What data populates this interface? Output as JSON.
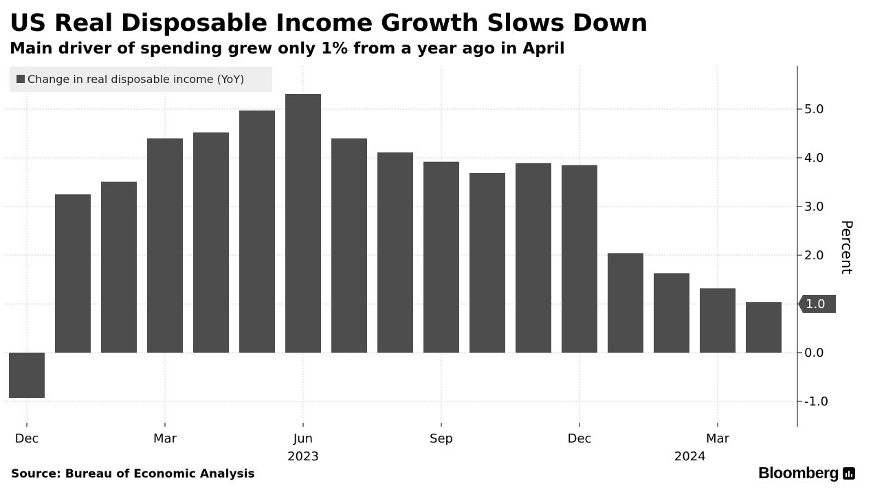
{
  "header": {
    "title": "US Real Disposable Income Growth Slows Down",
    "subtitle": "Main driver of spending grew only 1% from a year ago in April"
  },
  "footer": {
    "source": "Source: Bureau of Economic Analysis",
    "brand": "Bloomberg"
  },
  "colors": {
    "bar": "#4d4d4d",
    "grid": "#cfcfcf",
    "axis": "#000000",
    "legend_bg": "#eeeeee",
    "tag_bg": "#4d4d4d",
    "tag_text": "#ffffff"
  },
  "chart_data": {
    "type": "bar",
    "title": "US Real Disposable Income Growth Slows Down",
    "series": [
      {
        "name": "Change in real disposable income (YoY)",
        "values": [
          -0.93,
          3.25,
          3.51,
          4.4,
          4.52,
          4.97,
          5.31,
          4.4,
          4.11,
          3.92,
          3.69,
          3.89,
          3.85,
          2.04,
          1.63,
          1.32,
          1.04
        ]
      }
    ],
    "categories": [
      "Dec 2022",
      "Jan 2023",
      "Feb 2023",
      "Mar 2023",
      "Apr 2023",
      "May 2023",
      "Jun 2023",
      "Jul 2023",
      "Aug 2023",
      "Sep 2023",
      "Oct 2023",
      "Nov 2023",
      "Dec 2023",
      "Jan 2024",
      "Feb 2024",
      "Mar 2024",
      "Apr 2024"
    ],
    "x_tick_labels": [
      {
        "index": 0,
        "label": "Dec"
      },
      {
        "index": 3,
        "label": "Mar"
      },
      {
        "index": 6,
        "label": "Jun"
      },
      {
        "index": 9,
        "label": "Sep"
      },
      {
        "index": 12,
        "label": "Dec"
      },
      {
        "index": 15,
        "label": "Mar"
      }
    ],
    "x_year_labels": [
      {
        "index": 6,
        "label": "2023"
      },
      {
        "index": 14.4,
        "label": "2024"
      }
    ],
    "y_ticks": [
      -1.0,
      0.0,
      1.0,
      2.0,
      3.0,
      4.0,
      5.0
    ],
    "y_tick_labels": [
      "-1.0",
      "0.0",
      "1.0",
      "2.0",
      "3.0",
      "4.0",
      "5.0"
    ],
    "ylim": [
      -1.5,
      5.9
    ],
    "ylabel": "Percent",
    "xlabel": "",
    "y_axis_position": "right",
    "last_value_tag": "1.0",
    "grid": true,
    "legend": "top-left"
  }
}
